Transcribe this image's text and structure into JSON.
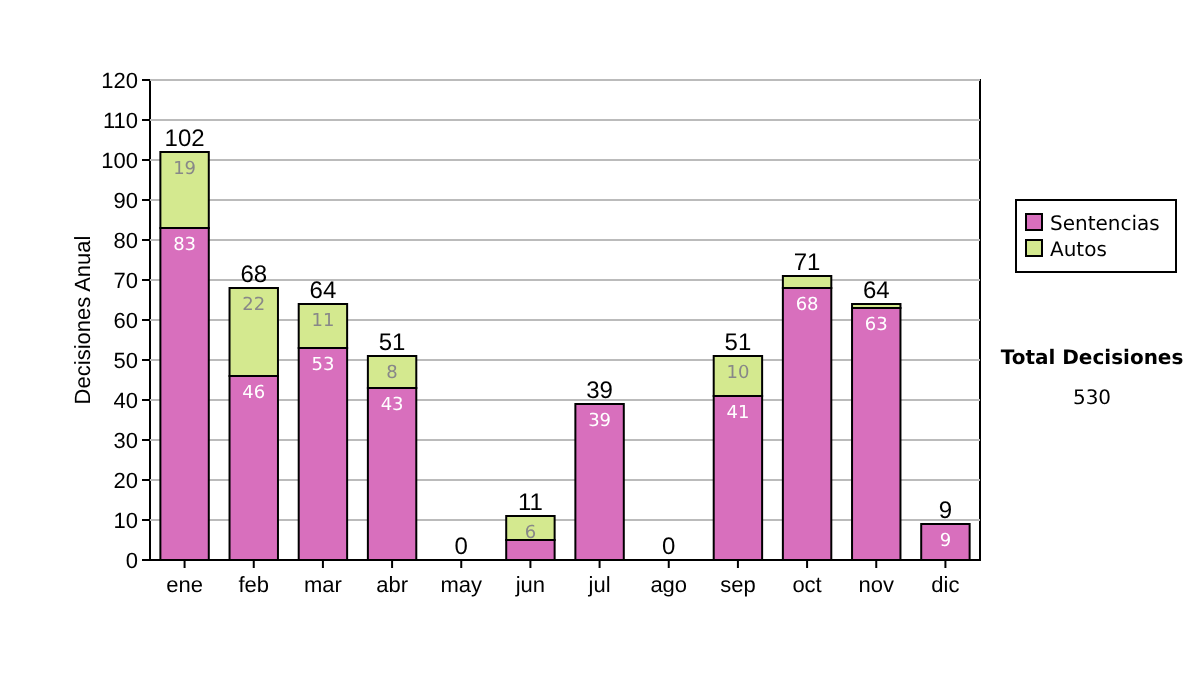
{
  "chart_data": {
    "type": "bar",
    "stacked": true,
    "ylabel": "Decisiones Anual",
    "categories": [
      "ene",
      "feb",
      "mar",
      "abr",
      "may",
      "jun",
      "jul",
      "ago",
      "sep",
      "oct",
      "nov",
      "dic"
    ],
    "series": [
      {
        "name": "Sentencias",
        "color": "#d86fbd",
        "values": [
          83,
          46,
          53,
          43,
          0,
          5,
          39,
          0,
          41,
          68,
          63,
          9
        ],
        "value_labels": [
          "83",
          "46",
          "53",
          "43",
          null,
          null,
          "39",
          null,
          "41",
          "68",
          "63",
          "9"
        ]
      },
      {
        "name": "Autos",
        "color": "#d4e98f",
        "values": [
          19,
          22,
          11,
          8,
          0,
          6,
          0,
          0,
          10,
          3,
          1,
          0
        ],
        "value_labels": [
          "19",
          "22",
          "11",
          "8",
          null,
          "6",
          null,
          null,
          "10",
          null,
          null,
          null
        ]
      }
    ],
    "totals": [
      "102",
      "68",
      "64",
      "51",
      "0",
      "11",
      "39",
      "0",
      "51",
      "71",
      "64",
      "9"
    ],
    "ylim": [
      0,
      120
    ],
    "yticks": [
      0,
      10,
      20,
      30,
      40,
      50,
      60,
      70,
      80,
      90,
      100,
      110,
      120
    ],
    "grid": "y",
    "legend": "right",
    "annotations": [
      "Total Decisiones",
      "530"
    ]
  }
}
